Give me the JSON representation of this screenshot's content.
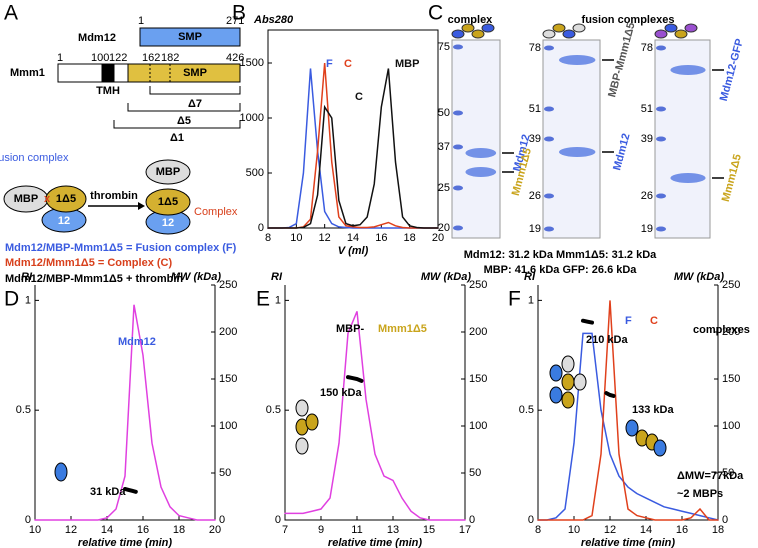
{
  "panel_labels": [
    "A",
    "B",
    "C",
    "D",
    "E",
    "F"
  ],
  "panel_a": {
    "mdm12": {
      "name": "Mdm12",
      "start": 1,
      "end": 271,
      "domain": "SMP"
    },
    "mmm1": {
      "name": "Mmm1",
      "residues": [
        1,
        100,
        122,
        162,
        182,
        426
      ],
      "domain": "SMP",
      "tmh": "TMH"
    },
    "constructs": [
      "Δ7",
      "Δ5",
      "Δ1"
    ],
    "scheme": {
      "fusion_label": "Fusion complex",
      "fusion": {
        "mbp": "MBP",
        "mmm1": "1Δ5",
        "mdm12": "12"
      },
      "arrow": "thrombin",
      "products": {
        "mbp": "MBP",
        "mmm1": "1Δ5",
        "mdm12": "12"
      },
      "complex_label": "Complex"
    },
    "legend": [
      "Mdm12/MBP-Mmm1Δ5 = Fusion complex (F)",
      "Mdm12/Mmm1Δ5 = Complex (C)",
      "Mdm12/MBP-Mmm1Δ5 + thrombin"
    ]
  },
  "panel_c": {
    "titles": [
      "complex",
      "fusion complexes"
    ],
    "gels": [
      {
        "ladder": [
          75,
          50,
          37,
          25,
          20
        ],
        "bands": [
          "Mdm12",
          "Mmm1Δ5"
        ]
      },
      {
        "ladder": [
          78,
          51,
          39,
          26,
          19
        ],
        "bands": [
          "MBP-Mmm1Δ5",
          "Mdm12"
        ]
      },
      {
        "ladder": [
          78,
          51,
          39,
          26,
          19
        ],
        "bands": [
          "Mdm12-GFP",
          "Mmm1Δ5"
        ]
      }
    ],
    "notes": [
      "Mdm12: 31.2 kDa Mmm1Δ5: 31.2 kDa",
      "MBP: 41.6 kDa GFP: 26.6 kDa"
    ]
  },
  "chart_data": [
    {
      "type": "line",
      "title": "Abs280",
      "xlabel": "V (ml)",
      "x": [
        8,
        8.5,
        9,
        9.5,
        10,
        10.5,
        11,
        11.5,
        12,
        12.5,
        13,
        13.5,
        14,
        14.5,
        15,
        15.5,
        16,
        16.5,
        17,
        17.5,
        18,
        18.5,
        19,
        19.5,
        20
      ],
      "series": [
        {
          "name": "F",
          "color": "#3a5be0",
          "values": [
            0,
            0,
            0,
            5,
            40,
            500,
            1450,
            700,
            150,
            40,
            10,
            5,
            0,
            0,
            0,
            0,
            0,
            0,
            0,
            0,
            0,
            0,
            0,
            0,
            0
          ]
        },
        {
          "name": "C",
          "color": "#e0401c",
          "values": [
            0,
            0,
            0,
            0,
            0,
            10,
            80,
            700,
            1500,
            600,
            100,
            20,
            10,
            5,
            5,
            10,
            30,
            50,
            20,
            5,
            0,
            0,
            0,
            0,
            0
          ]
        },
        {
          "color": "#111111",
          "values": [
            0,
            0,
            0,
            0,
            0,
            5,
            40,
            300,
            1100,
            1000,
            250,
            40,
            20,
            30,
            100,
            400,
            1100,
            1450,
            600,
            100,
            20,
            5,
            0,
            0,
            0
          ]
        }
      ],
      "xlim": [
        8,
        20
      ],
      "xticks": [
        8,
        10,
        12,
        14,
        16,
        18,
        20
      ],
      "ylim": [
        0,
        1800
      ],
      "yticks": [
        0,
        500,
        1000,
        1500
      ],
      "annotations": [
        {
          "text": "C",
          "color": "#111111"
        },
        {
          "text": "MBP",
          "color": "#111111"
        }
      ]
    },
    {
      "type": "line",
      "xlabel": "relative time (min)",
      "ylabel": "RI",
      "y2label": "MW (kDa)",
      "x": [
        10,
        10.5,
        11,
        11.5,
        12,
        12.5,
        13,
        13.5,
        14,
        14.5,
        15,
        15.5,
        16,
        16.5,
        17,
        17.5,
        18,
        18.5,
        19,
        19.5,
        20
      ],
      "series": [
        {
          "color": "#e040e0",
          "values": [
            0,
            0,
            0,
            0,
            0,
            0,
            0,
            0,
            0.01,
            0.05,
            0.2,
            0.98,
            0.75,
            0.35,
            0.15,
            0.06,
            0.02,
            0.01,
            0,
            0,
            0
          ]
        },
        {
          "color": "#000000",
          "axis": "y2",
          "x": [
            15,
            15.2,
            15.4,
            15.6
          ],
          "values": [
            33,
            32,
            31,
            30
          ]
        }
      ],
      "xlim": [
        10,
        20
      ],
      "xticks": [
        10,
        12,
        14,
        16,
        18,
        20
      ],
      "ylim": [
        0,
        1.07
      ],
      "yticks": [
        0,
        0.5,
        1
      ],
      "y2lim": [
        0,
        250
      ],
      "y2ticks": [
        0,
        50,
        100,
        150,
        200,
        250
      ],
      "annotations": [
        {
          "text": "Mdm12",
          "color": "#3a5be0"
        },
        {
          "text": "31 kDa",
          "color": "#000000"
        }
      ]
    },
    {
      "type": "line",
      "xlabel": "relative time (min)",
      "ylabel": "RI",
      "y2label": "MW (kDa)",
      "x": [
        7,
        7.5,
        8,
        8.5,
        9,
        9.5,
        10,
        10.5,
        11,
        11.5,
        12,
        12.5,
        13,
        13.5,
        14,
        14.5,
        15,
        15.5,
        16,
        16.5,
        17
      ],
      "series": [
        {
          "color": "#e040e0",
          "values": [
            0.03,
            0.03,
            0.03,
            0.04,
            0.05,
            0.1,
            0.35,
            0.85,
            0.95,
            0.55,
            0.3,
            0.2,
            0.18,
            0.1,
            0.04,
            0.01,
            0,
            0,
            0,
            0,
            0
          ]
        },
        {
          "color": "#000000",
          "axis": "y2",
          "x": [
            10.5,
            10.75,
            11,
            11.25
          ],
          "values": [
            152,
            151,
            150,
            148
          ]
        }
      ],
      "xlim": [
        7,
        17
      ],
      "xticks": [
        7,
        9,
        11,
        13,
        15,
        17
      ],
      "ylim": [
        0,
        1.07
      ],
      "yticks": [
        0,
        0.5,
        1
      ],
      "y2lim": [
        0,
        250
      ],
      "y2ticks": [
        0,
        50,
        100,
        150,
        200,
        250
      ],
      "annotations": [
        {
          "text": "MBP-",
          "color": "#000000"
        },
        {
          "text": "Mmm1Δ5",
          "color": "#c9a41c"
        },
        {
          "text": "150 kDa",
          "color": "#000000"
        }
      ]
    },
    {
      "type": "line",
      "xlabel": "relative time (min)",
      "ylabel": "RI",
      "y2label": "MW (kDa)",
      "x": [
        8,
        8.5,
        9,
        9.5,
        10,
        10.5,
        11,
        11.5,
        12,
        12.5,
        13,
        13.5,
        14,
        14.5,
        15,
        15.5,
        16,
        16.5,
        17,
        17.5,
        18
      ],
      "series": [
        {
          "name": "F",
          "color": "#3a5be0",
          "values": [
            0,
            0,
            0.01,
            0.05,
            0.35,
            0.85,
            0.85,
            0.5,
            0.3,
            0.2,
            0.15,
            0.12,
            0.1,
            0.08,
            0.06,
            0.05,
            0.04,
            0.03,
            0.02,
            0.01,
            0
          ]
        },
        {
          "name": "C",
          "color": "#e0401c",
          "values": [
            0,
            0,
            0,
            0,
            0,
            0,
            0.02,
            0.3,
            1,
            0.3,
            0.05,
            0.02,
            0.01,
            0,
            0,
            0,
            0,
            0.01,
            0.05,
            0,
            0
          ]
        },
        {
          "color": "#000000",
          "axis": "y2",
          "x": [
            10.5,
            10.75,
            11
          ],
          "values": [
            212,
            211,
            210
          ]
        },
        {
          "color": "#000000",
          "axis": "y2",
          "x": [
            11.8,
            12,
            12.2
          ],
          "values": [
            135,
            133,
            132
          ]
        }
      ],
      "xlim": [
        8,
        18
      ],
      "xticks": [
        8,
        10,
        12,
        14,
        16,
        18
      ],
      "ylim": [
        0,
        1.07
      ],
      "yticks": [
        0,
        0.5,
        1
      ],
      "y2lim": [
        0,
        250
      ],
      "y2ticks": [
        0,
        50,
        100,
        150,
        200,
        250
      ],
      "annotations": [
        {
          "text": "complexes",
          "color": "#000000"
        },
        {
          "text": "210 kDa",
          "color": "#000000"
        },
        {
          "text": "133 kDa",
          "color": "#000000"
        },
        {
          "text": "ΔMW=77kDa",
          "color": "#000000"
        },
        {
          "text": "~2 MBPs",
          "color": "#000000"
        }
      ]
    }
  ]
}
